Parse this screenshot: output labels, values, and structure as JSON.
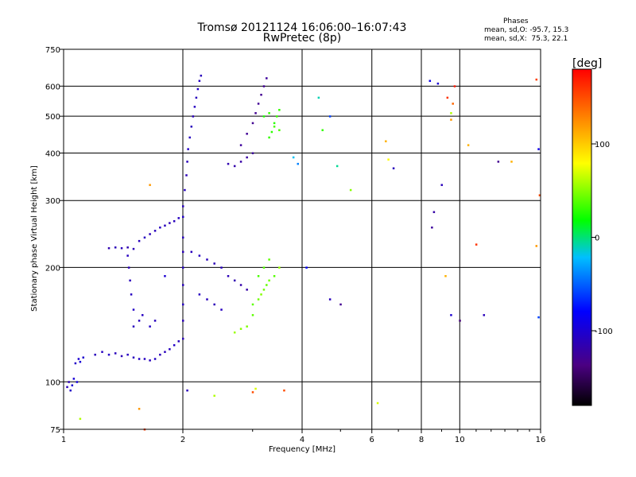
{
  "header": {
    "title_line1": "Tromsø 20121124 16:06:00–16:07:43",
    "title_line2": "RwPretec (8p)"
  },
  "phase_box": {
    "title": "Phases",
    "line_o": "mean, sd,O: -95.7, 15.3",
    "line_x": "mean, sd,X:  75.3, 22.1"
  },
  "chart_data": {
    "type": "scatter",
    "xlabel": "Frequency [MHz]",
    "ylabel": "Stationary phase Virtual Height [km]",
    "x_scale": "log",
    "y_scale": "log",
    "xlim": [
      1,
      16
    ],
    "ylim": [
      75,
      750
    ],
    "x_ticks": [
      1,
      2,
      4,
      6,
      8,
      10,
      16
    ],
    "x_tick_labels": [
      "1",
      "2",
      "4",
      "6",
      "8",
      "10",
      "16"
    ],
    "y_ticks": [
      75,
      100,
      200,
      300,
      400,
      500,
      600,
      750
    ],
    "y_tick_labels": [
      "75",
      "100",
      "200",
      "300",
      "400",
      "500",
      "600",
      "750"
    ],
    "grid": true,
    "colorbar": {
      "unit": "[deg]",
      "range": [
        -180,
        180
      ],
      "ticks": [
        100,
        0,
        -100
      ],
      "tick_labels": [
        "100",
        "0",
        "-100"
      ]
    },
    "series": [
      {
        "points": [
          [
            1.02,
            97,
            -110
          ],
          [
            1.04,
            95,
            -105
          ],
          [
            1.05,
            98,
            -100
          ],
          [
            1.03,
            100,
            -112
          ],
          [
            1.06,
            102,
            -98
          ],
          [
            1.08,
            100,
            -95
          ],
          [
            1.07,
            112,
            -105
          ],
          [
            1.09,
            115,
            -100
          ],
          [
            1.1,
            113,
            -98
          ],
          [
            1.12,
            116,
            -102
          ],
          [
            1.2,
            118,
            -110
          ],
          [
            1.25,
            120,
            -108
          ],
          [
            1.3,
            118,
            -105
          ],
          [
            1.35,
            119,
            -110
          ],
          [
            1.4,
            117,
            -112
          ],
          [
            1.45,
            118,
            -108
          ],
          [
            1.5,
            116,
            -110
          ],
          [
            1.55,
            115,
            -105
          ],
          [
            1.6,
            115,
            -108
          ],
          [
            1.65,
            114,
            -110
          ],
          [
            1.7,
            115,
            -106
          ],
          [
            1.75,
            118,
            -112
          ],
          [
            1.8,
            120,
            -110
          ],
          [
            1.85,
            122,
            -108
          ],
          [
            1.9,
            125,
            -105
          ],
          [
            1.95,
            128,
            -110
          ],
          [
            2.0,
            130,
            -112
          ],
          [
            1.5,
            140,
            -110
          ],
          [
            1.5,
            155,
            -105
          ],
          [
            1.48,
            170,
            -108
          ],
          [
            1.47,
            185,
            -110
          ],
          [
            1.46,
            200,
            -112
          ],
          [
            1.45,
            215,
            -108
          ],
          [
            1.55,
            145,
            -110
          ],
          [
            1.58,
            150,
            -108
          ],
          [
            1.65,
            140,
            -106
          ],
          [
            1.7,
            145,
            -110
          ],
          [
            1.3,
            225,
            -115
          ],
          [
            1.35,
            226,
            -112
          ],
          [
            1.4,
            225,
            -110
          ],
          [
            1.45,
            226,
            -115
          ],
          [
            1.5,
            224,
            -112
          ],
          [
            1.55,
            235,
            -110
          ],
          [
            1.6,
            240,
            -108
          ],
          [
            1.65,
            245,
            -112
          ],
          [
            1.7,
            250,
            -110
          ],
          [
            1.75,
            255,
            -108
          ],
          [
            1.8,
            258,
            -110
          ],
          [
            1.85,
            262,
            -112
          ],
          [
            1.9,
            265,
            -110
          ],
          [
            1.95,
            270,
            -108
          ],
          [
            2.0,
            272,
            -105
          ],
          [
            2.0,
            290,
            -110
          ],
          [
            2.02,
            320,
            -108
          ],
          [
            2.04,
            350,
            -112
          ],
          [
            2.05,
            380,
            -110
          ],
          [
            2.06,
            410,
            -105
          ],
          [
            2.08,
            440,
            -108
          ],
          [
            2.1,
            470,
            -110
          ],
          [
            2.12,
            500,
            -112
          ],
          [
            2.14,
            530,
            -108
          ],
          [
            2.16,
            560,
            -110
          ],
          [
            2.18,
            590,
            -105
          ],
          [
            2.2,
            620,
            -108
          ],
          [
            2.22,
            640,
            -110
          ],
          [
            2.0,
            180,
            -110
          ],
          [
            2.0,
            200,
            -108
          ],
          [
            2.0,
            220,
            -112
          ],
          [
            2.0,
            240,
            -110
          ],
          [
            2.0,
            160,
            -108
          ],
          [
            2.0,
            145,
            -112
          ],
          [
            2.1,
            220,
            -110
          ],
          [
            2.2,
            215,
            -108
          ],
          [
            2.3,
            210,
            -110
          ],
          [
            2.4,
            205,
            -112
          ],
          [
            2.5,
            200,
            -110
          ],
          [
            2.2,
            170,
            -108
          ],
          [
            2.3,
            165,
            -110
          ],
          [
            2.4,
            160,
            -112
          ],
          [
            2.5,
            155,
            -108
          ],
          [
            2.6,
            190,
            -112
          ],
          [
            2.7,
            185,
            -115
          ],
          [
            2.8,
            180,
            -118
          ],
          [
            2.9,
            175,
            -120
          ],
          [
            2.6,
            375,
            -115
          ],
          [
            2.7,
            370,
            -118
          ],
          [
            2.8,
            380,
            -120
          ],
          [
            2.9,
            390,
            -122
          ],
          [
            3.0,
            400,
            -125
          ],
          [
            2.8,
            420,
            -125
          ],
          [
            2.9,
            450,
            -128
          ],
          [
            3.0,
            480,
            -130
          ],
          [
            3.05,
            510,
            -130
          ],
          [
            3.1,
            540,
            -128
          ],
          [
            3.15,
            570,
            -130
          ],
          [
            3.2,
            600,
            -128
          ],
          [
            3.25,
            630,
            -125
          ],
          [
            3.2,
            500,
            25
          ],
          [
            3.3,
            510,
            30
          ],
          [
            3.4,
            480,
            28
          ],
          [
            3.5,
            460,
            35
          ],
          [
            3.3,
            440,
            30
          ],
          [
            3.45,
            500,
            32
          ],
          [
            3.5,
            520,
            30
          ],
          [
            3.4,
            470,
            35
          ],
          [
            3.35,
            455,
            28
          ],
          [
            3.0,
            160,
            40
          ],
          [
            3.1,
            165,
            45
          ],
          [
            3.15,
            170,
            50
          ],
          [
            3.2,
            175,
            45
          ],
          [
            3.25,
            180,
            42
          ],
          [
            3.0,
            150,
            40
          ],
          [
            2.9,
            140,
            48
          ],
          [
            2.8,
            138,
            50
          ],
          [
            2.7,
            135,
            55
          ],
          [
            3.3,
            185,
            45
          ],
          [
            3.4,
            190,
            38
          ],
          [
            3.1,
            190,
            35
          ],
          [
            3.2,
            200,
            38
          ],
          [
            3.3,
            210,
            40
          ],
          [
            3.5,
            200,
            55
          ],
          [
            4.4,
            560,
            -10
          ],
          [
            4.5,
            460,
            30
          ],
          [
            4.7,
            500,
            -60
          ],
          [
            4.9,
            370,
            -5
          ],
          [
            5.3,
            320,
            50
          ],
          [
            4.1,
            200,
            -80
          ],
          [
            5.0,
            160,
            -130
          ],
          [
            4.7,
            165,
            -110
          ],
          [
            3.9,
            375,
            -40
          ],
          [
            3.8,
            390,
            -20
          ],
          [
            6.2,
            88,
            70
          ],
          [
            6.5,
            430,
            110
          ],
          [
            6.8,
            365,
            -110
          ],
          [
            6.6,
            385,
            80
          ],
          [
            8.4,
            620,
            -90
          ],
          [
            8.8,
            610,
            -100
          ],
          [
            9.0,
            330,
            -110
          ],
          [
            9.3,
            560,
            160
          ],
          [
            9.5,
            490,
            120
          ],
          [
            9.6,
            540,
            140
          ],
          [
            8.6,
            280,
            -120
          ],
          [
            8.5,
            255,
            -125
          ],
          [
            9.2,
            190,
            110
          ],
          [
            9.5,
            150,
            -100
          ],
          [
            10.0,
            145,
            -140
          ],
          [
            10.5,
            420,
            110
          ],
          [
            11.0,
            230,
            160
          ],
          [
            11.5,
            150,
            -110
          ],
          [
            12.5,
            380,
            -130
          ],
          [
            13.5,
            380,
            110
          ],
          [
            15.8,
            410,
            -90
          ],
          [
            15.9,
            310,
            150
          ],
          [
            15.6,
            625,
            155
          ],
          [
            15.6,
            228,
            120
          ],
          [
            15.8,
            148,
            -60
          ],
          [
            9.7,
            600,
            170
          ],
          [
            9.5,
            510,
            60
          ],
          [
            1.1,
            80,
            60
          ],
          [
            1.55,
            85,
            120
          ],
          [
            1.6,
            75,
            155
          ],
          [
            2.05,
            95,
            -110
          ],
          [
            2.4,
            92,
            60
          ],
          [
            3.0,
            94,
            150
          ],
          [
            3.6,
            95,
            150
          ],
          [
            3.05,
            96,
            70
          ],
          [
            1.8,
            190,
            -100
          ],
          [
            1.65,
            330,
            120
          ]
        ]
      }
    ]
  }
}
